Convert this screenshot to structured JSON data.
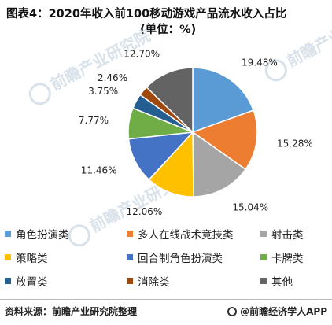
{
  "title": "图表4：2020年收入前100移动游戏产品流水收入占比",
  "subtitle": "(单位：%)",
  "watermark_text": "前瞻产业研究院",
  "chart_data": {
    "type": "pie",
    "title": "图表4：2020年收入前100移动游戏产品流水收入占比",
    "subtitle": "(单位：%)",
    "unit": "%",
    "legend_position": "bottom",
    "slices": [
      {
        "name": "角色扮演类",
        "value": 19.48,
        "label": "19.48%",
        "color": "#5b9bd5"
      },
      {
        "name": "多人在线战术竞技类",
        "value": 15.28,
        "label": "15.28%",
        "color": "#ed7d31"
      },
      {
        "name": "射击类",
        "value": 15.04,
        "label": "15.04%",
        "color": "#a5a5a5"
      },
      {
        "name": "策略类",
        "value": 12.06,
        "label": "12.06%",
        "color": "#ffc000"
      },
      {
        "name": "回合制角色扮演类",
        "value": 11.46,
        "label": "11.46%",
        "color": "#4472c4"
      },
      {
        "name": "卡牌类",
        "value": 7.77,
        "label": "7.77%",
        "color": "#70ad47"
      },
      {
        "name": "放置类",
        "value": 3.75,
        "label": "3.75%",
        "color": "#255e91"
      },
      {
        "name": "消除类",
        "value": 2.46,
        "label": "2.46%",
        "color": "#9e480e"
      },
      {
        "name": "其他",
        "value": 12.7,
        "label": "12.70%",
        "color": "#636363"
      }
    ]
  },
  "footer": {
    "source": "资料来源：前瞻产业研究院整理",
    "brand": "@前瞻经济学人APP"
  }
}
